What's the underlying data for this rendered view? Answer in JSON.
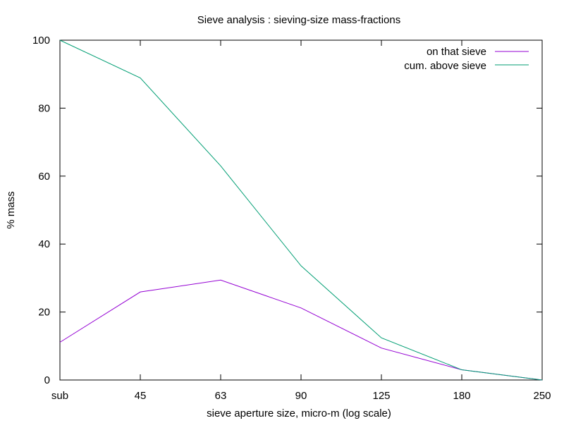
{
  "chart_data": {
    "type": "line",
    "title": "Sieve analysis : sieving-size mass-fractions",
    "xlabel": "sieve aperture size, micro-m  (log scale)",
    "ylabel": "% mass",
    "categories": [
      "sub",
      "45",
      "63",
      "90",
      "125",
      "180",
      "250"
    ],
    "ylim": [
      0,
      100
    ],
    "yticks": [
      0,
      20,
      40,
      60,
      80,
      100
    ],
    "grid": false,
    "legend_position": "top-right",
    "series": [
      {
        "name": "on that sieve",
        "color": "#9400d3",
        "values": [
          11.1,
          25.9,
          29.4,
          21.2,
          9.4,
          3.0,
          0.0
        ]
      },
      {
        "name": "cum. above sieve",
        "color": "#009e73",
        "values": [
          100.0,
          88.9,
          63.0,
          33.6,
          12.4,
          3.0,
          0.0
        ]
      }
    ]
  }
}
